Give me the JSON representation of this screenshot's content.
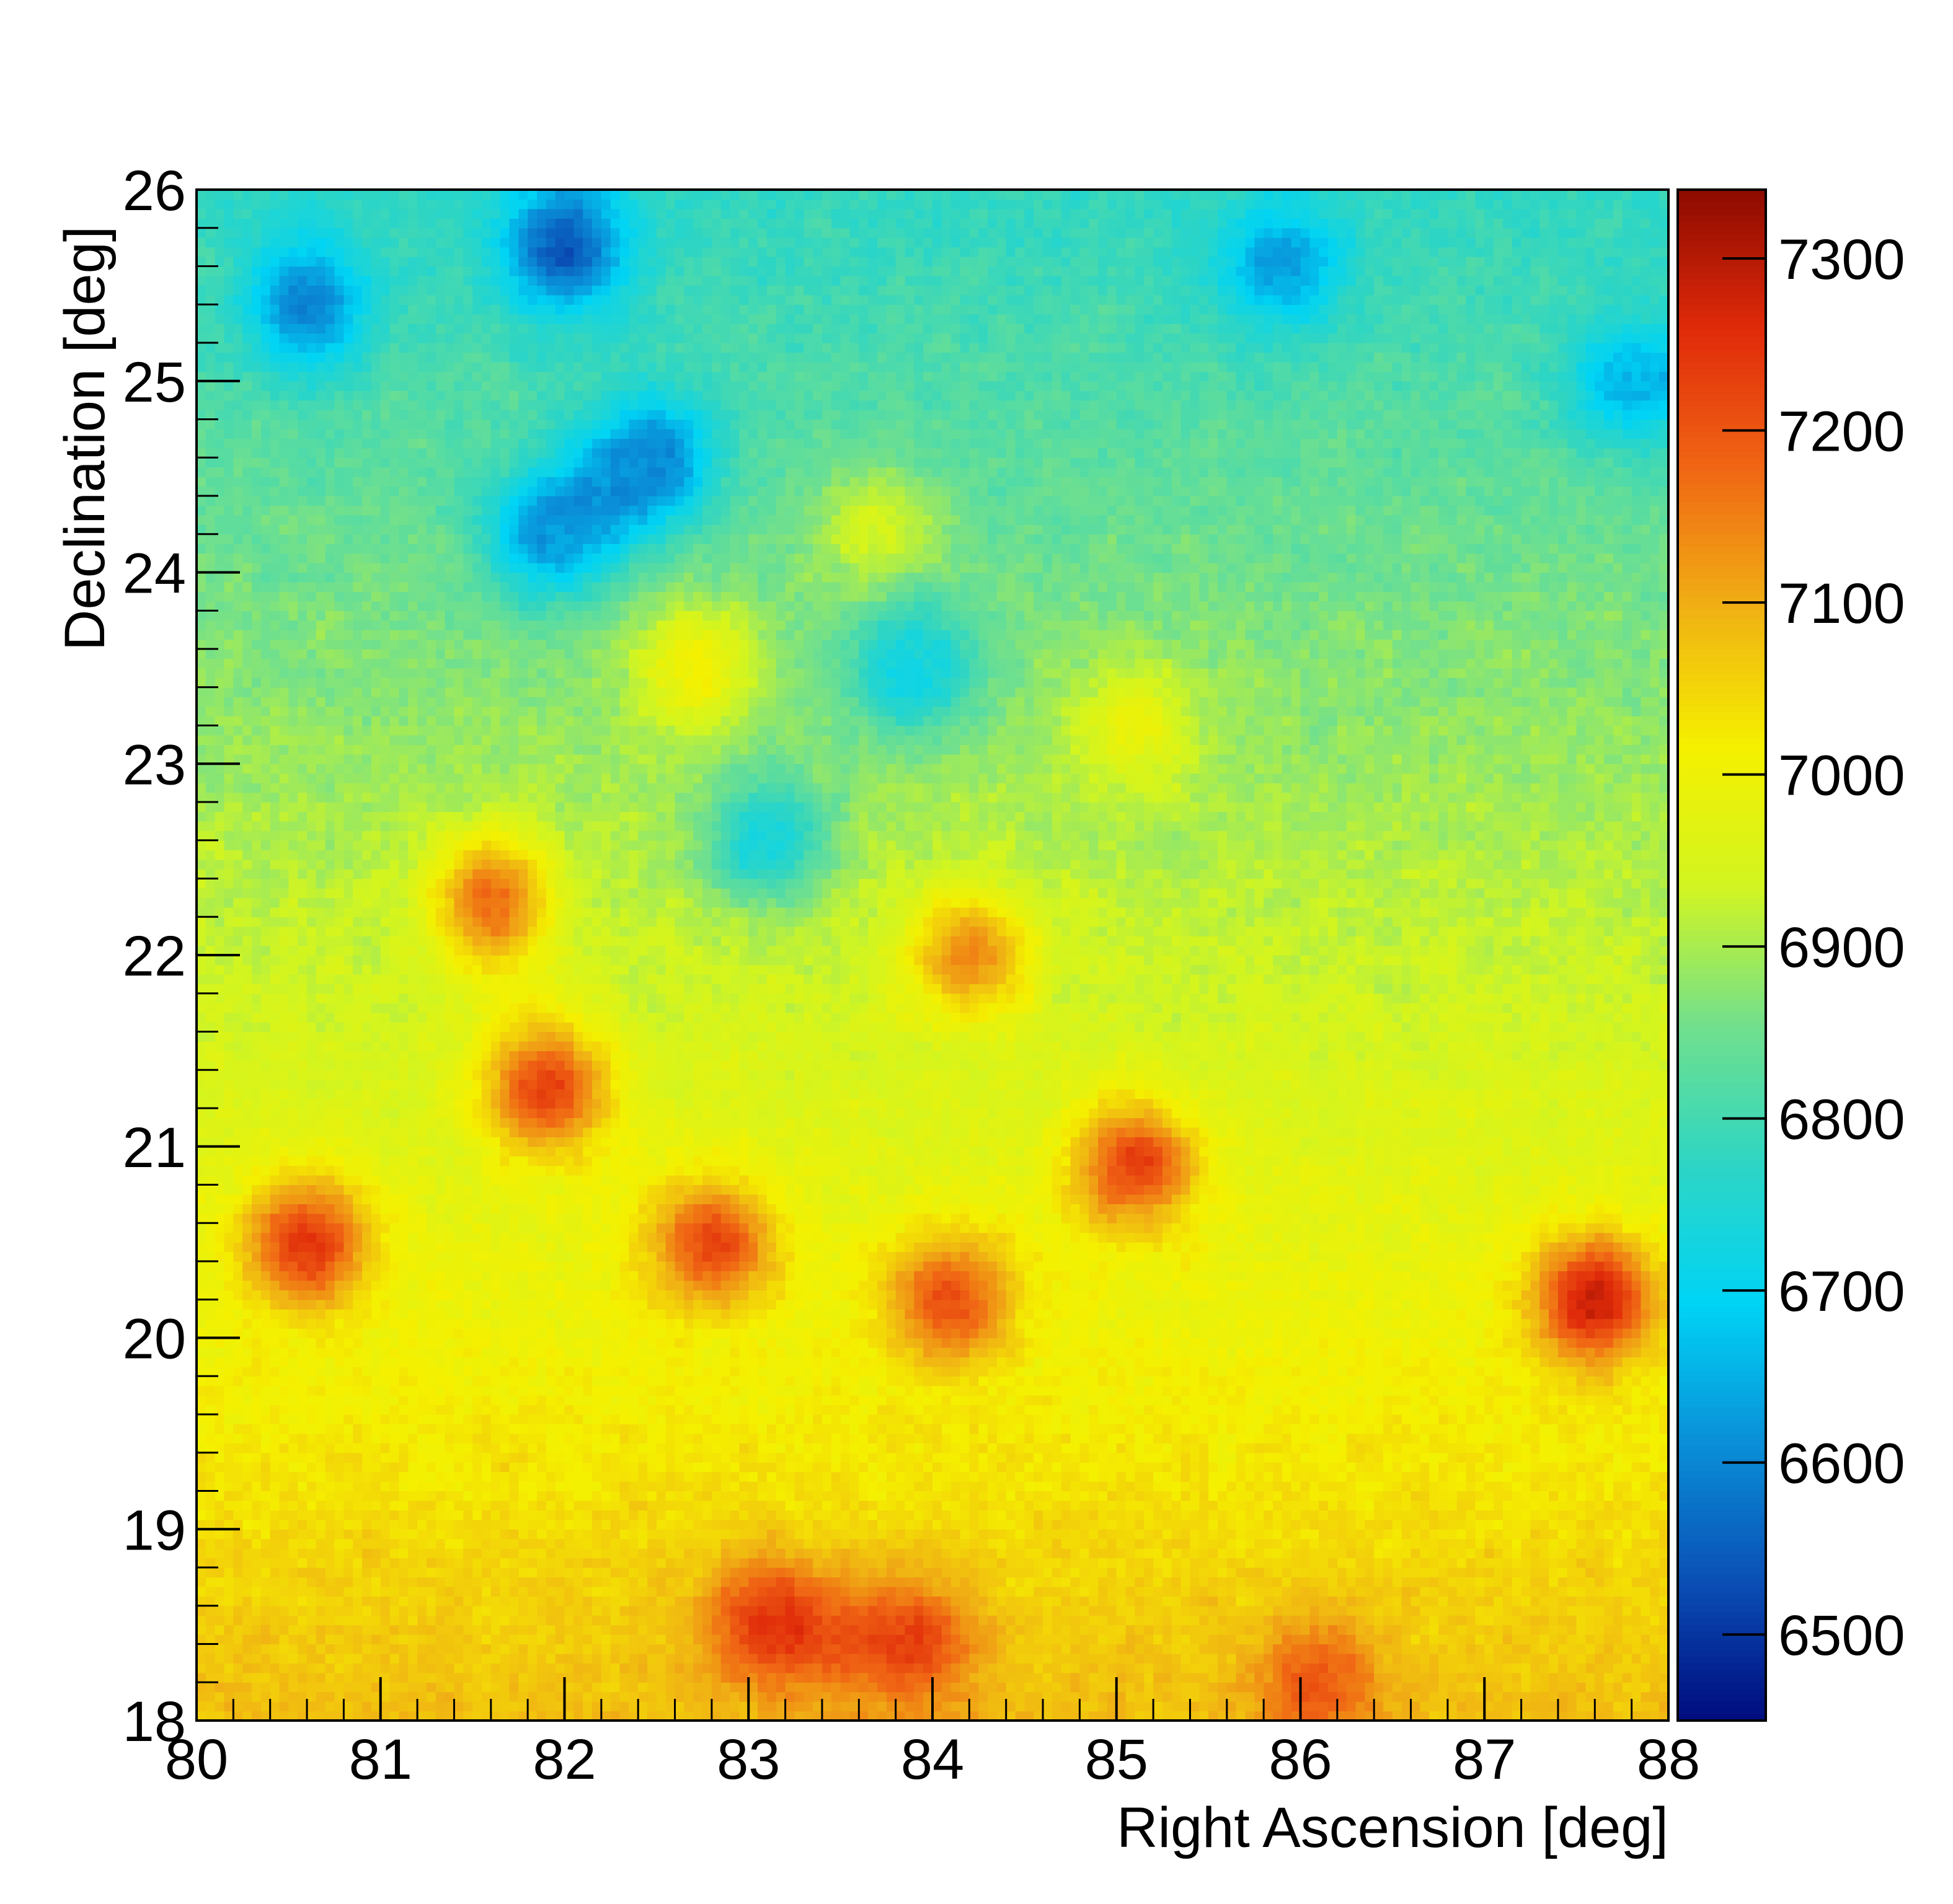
{
  "chart_data": {
    "type": "heatmap",
    "title": "",
    "xlabel": "Right Ascension [deg]",
    "ylabel": "Declination [deg]",
    "xlim": [
      80,
      88
    ],
    "ylim": [
      18,
      26
    ],
    "x_ticks": [
      "80",
      "81",
      "82",
      "83",
      "84",
      "85",
      "86",
      "87",
      "88"
    ],
    "y_ticks": [
      "18",
      "19",
      "20",
      "21",
      "22",
      "23",
      "24",
      "25",
      "26"
    ],
    "bin_size_deg": 0.05,
    "grid": false,
    "colorbar": {
      "range": [
        6450,
        7340
      ],
      "ticks": [
        "6500",
        "6600",
        "6700",
        "6800",
        "6900",
        "7000",
        "7100",
        "7200",
        "7300"
      ],
      "palette": [
        "#000b7e",
        "#0a4fb5",
        "#0a8fd8",
        "#00d4f5",
        "#2ed5c4",
        "#72e08c",
        "#d2f520",
        "#f5f000",
        "#f0b014",
        "#f06614",
        "#e02a0a",
        "#8c0a00"
      ]
    },
    "structure_description_points": [
      {
        "ra": 80.6,
        "dec": 20.5,
        "value": 7260
      },
      {
        "ra": 81.9,
        "dec": 21.3,
        "value": 7240
      },
      {
        "ra": 82.8,
        "dec": 20.5,
        "value": 7230
      },
      {
        "ra": 84.1,
        "dec": 20.2,
        "value": 7220
      },
      {
        "ra": 85.1,
        "dec": 20.9,
        "value": 7240
      },
      {
        "ra": 87.6,
        "dec": 20.2,
        "value": 7300
      },
      {
        "ra": 83.1,
        "dec": 18.5,
        "value": 7250
      },
      {
        "ra": 83.9,
        "dec": 18.4,
        "value": 7230
      },
      {
        "ra": 81.6,
        "dec": 22.3,
        "value": 7180
      },
      {
        "ra": 84.2,
        "dec": 22.0,
        "value": 7150
      },
      {
        "ra": 86.1,
        "dec": 18.2,
        "value": 7200
      },
      {
        "ra": 82.0,
        "dec": 25.7,
        "value": 6520
      },
      {
        "ra": 80.6,
        "dec": 25.4,
        "value": 6580
      },
      {
        "ra": 82.5,
        "dec": 24.6,
        "value": 6600
      },
      {
        "ra": 81.9,
        "dec": 24.2,
        "value": 6620
      },
      {
        "ra": 85.9,
        "dec": 25.6,
        "value": 6620
      },
      {
        "ra": 87.8,
        "dec": 25.0,
        "value": 6640
      },
      {
        "ra": 83.1,
        "dec": 22.6,
        "value": 6720
      },
      {
        "ra": 83.9,
        "dec": 23.5,
        "value": 6700
      },
      {
        "ra": 83.7,
        "dec": 24.2,
        "value": 6960
      },
      {
        "ra": 82.7,
        "dec": 23.5,
        "value": 7020
      },
      {
        "ra": 85.1,
        "dec": 23.2,
        "value": 7000
      }
    ]
  }
}
